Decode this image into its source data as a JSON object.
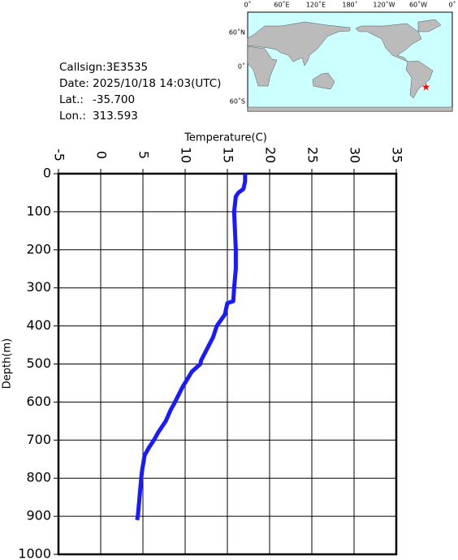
{
  "chart_data": {
    "type": "profile",
    "x_label": "Temperature(C)",
    "y_label": "Depth(m)",
    "x": [
      17.1,
      17.1,
      16.9,
      16.3,
      16.0,
      15.8,
      15.9,
      16.0,
      16.0,
      15.8,
      15.7,
      15.0,
      14.7,
      13.75,
      13.3,
      12.6,
      11.9,
      11.8,
      10.8,
      9.7,
      8.8,
      8.3,
      7.7,
      6.8,
      6.3,
      5.7,
      5.2,
      4.9,
      4.8,
      4.6,
      4.4,
      4.3
    ],
    "y": [
      0,
      20,
      40,
      50,
      60,
      100,
      150,
      200,
      250,
      300,
      335,
      340,
      370,
      400,
      430,
      460,
      490,
      500,
      520,
      560,
      600,
      620,
      650,
      680,
      700,
      720,
      740,
      780,
      800,
      850,
      900,
      910
    ],
    "color": "#1a1aff",
    "xlim": [
      -5,
      35
    ],
    "xticks": [
      -5,
      0,
      5,
      10,
      15,
      20,
      25,
      30,
      35
    ],
    "ylim": [
      1000,
      0
    ],
    "yticks": [
      0,
      100,
      200,
      300,
      400,
      500,
      600,
      700,
      800,
      900,
      1000
    ],
    "grid": true
  },
  "info": {
    "callsign": "Callsign:3E3535",
    "date": "Date:  2025/10/18 14:03(UTC)",
    "lat_label": "Lat.:",
    "lat": "-35.700",
    "lon_label": "Lon.:",
    "lon": "313.593"
  },
  "map": {
    "lon_labels": [
      "0˚",
      "60˚E",
      "120˚E",
      "180˚",
      "120˚W",
      "60˚W",
      "0˚"
    ],
    "lat_labels": [
      "60˚N",
      "0˚",
      "60˚S"
    ],
    "marker_color": "#ff0000"
  }
}
